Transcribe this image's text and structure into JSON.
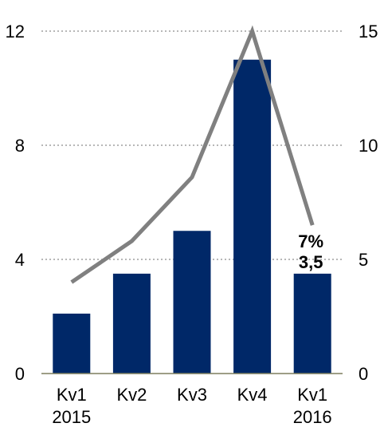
{
  "chart_data": {
    "type": "bar",
    "categories": [
      [
        "Kv1",
        "2015"
      ],
      [
        "Kv2",
        ""
      ],
      [
        "Kv3",
        ""
      ],
      [
        "Kv4",
        ""
      ],
      [
        "Kv1",
        "2016"
      ]
    ],
    "series": [
      {
        "type": "bar",
        "axis": "left",
        "values": [
          2.1,
          3.5,
          5.0,
          11.0,
          3.5
        ],
        "color": "#002868"
      },
      {
        "type": "line",
        "axis": "right",
        "values": [
          4.0,
          5.8,
          8.6,
          15.0,
          6.5
        ],
        "color": "#808080"
      }
    ],
    "y_left": {
      "ylim": [
        0,
        12
      ],
      "ticks": [
        "0",
        "4",
        "8",
        "12"
      ]
    },
    "y_right": {
      "ylim": [
        0,
        15
      ],
      "ticks": [
        "0",
        "5",
        "10",
        "15"
      ]
    },
    "annotations": [
      {
        "text": "3,5",
        "category_index": 4,
        "series": "bar"
      },
      {
        "text": "7%",
        "category_index": 4,
        "series": "line"
      }
    ],
    "grid": "horizontal-dotted",
    "legend": "none"
  }
}
